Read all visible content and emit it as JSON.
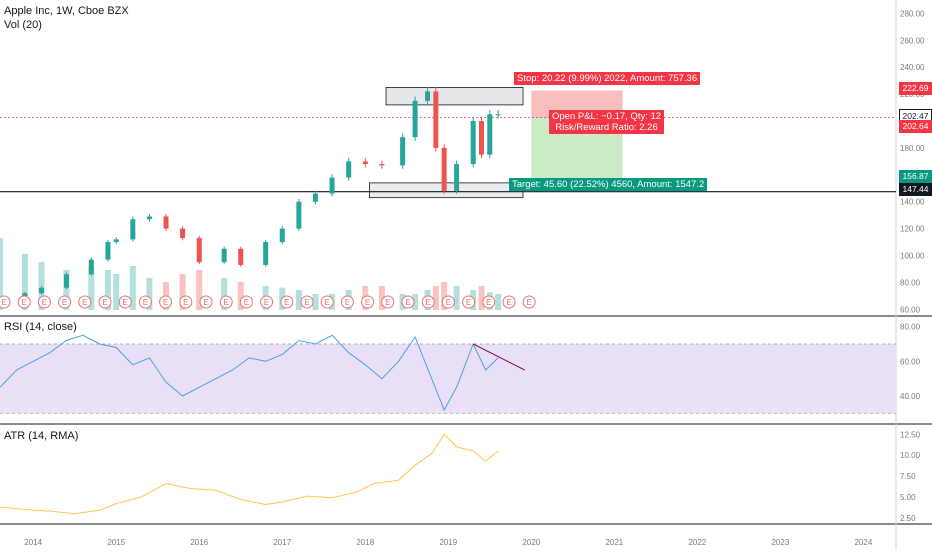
{
  "header": {
    "symbol": "Apple Inc, 1W, Cboe BZX",
    "volume_indicator": "Vol (20)",
    "rsi_indicator": "RSI (14, close)",
    "atr_indicator": "ATR (14, RMA)"
  },
  "colors": {
    "up": "#26a69a",
    "down": "#ef5350",
    "stop_zone": "#f7a9a8",
    "target_zone": "#b9e4b4",
    "rsi_line": "#4aa3df",
    "rsi_band": "#e9dff7",
    "atr_line": "#f9c74f",
    "earnings": "#e57373"
  },
  "price_axis": {
    "ticks": [
      "280.00",
      "260.00",
      "240.00",
      "220.00",
      "200.00",
      "180.00",
      "160.00",
      "140.00",
      "120.00",
      "100.00",
      "80.00",
      "60.00"
    ],
    "labels": [
      {
        "text": "222.69",
        "color": "#f23645"
      },
      {
        "text": "202.47",
        "color": "#ffffff",
        "text_color": "#131722"
      },
      {
        "text": "202.64",
        "color": "#f23645"
      },
      {
        "text": "156.87",
        "color": "#089981"
      },
      {
        "text": "147.44",
        "color": "#131722"
      }
    ]
  },
  "rsi_axis": {
    "ticks": [
      "80.00",
      "60.00",
      "40.00"
    ]
  },
  "atr_axis": {
    "ticks": [
      "12.50",
      "10.00",
      "7.50",
      "5.00",
      "2.50"
    ]
  },
  "time_axis": {
    "ticks": [
      "2014",
      "2015",
      "2016",
      "2017",
      "2018",
      "2019",
      "2020",
      "2021",
      "2022",
      "2023",
      "2024"
    ]
  },
  "trade": {
    "stop": "Stop: 20.22 (9.99%) 2022, Amount: 757.36",
    "pnl": "Open P&L: −0.17, Qty: 12",
    "risk_reward": "Risk/Reward Ratio: 2.26",
    "target": "Target: 45.60 (22.52%) 4560, Amount: 1547.2"
  },
  "earnings_marker": "E",
  "chart_data": [
    {
      "type": "candlestick",
      "title": "Apple Inc, 1W, Cboe BZX",
      "x_range": [
        2013.6,
        2024.2
      ],
      "ylim": [
        55,
        290
      ],
      "x": [
        2013.6,
        2013.9,
        2014.1,
        2014.4,
        2014.7,
        2014.9,
        2015.0,
        2015.2,
        2015.4,
        2015.6,
        2015.8,
        2016.0,
        2016.3,
        2016.5,
        2016.8,
        2017.0,
        2017.2,
        2017.4,
        2017.6,
        2017.8,
        2018.0,
        2018.2,
        2018.45,
        2018.6,
        2018.75,
        2018.85,
        2018.95,
        2019.1,
        2019.3,
        2019.4,
        2019.5,
        2019.6
      ],
      "close": [
        66,
        72,
        76,
        86,
        97,
        110,
        112,
        127,
        129,
        120,
        113,
        95,
        105,
        93,
        110,
        120,
        140,
        146,
        158,
        170,
        168,
        167,
        188,
        215,
        222,
        180,
        148,
        168,
        200,
        175,
        205,
        205
      ]
    },
    {
      "type": "bar",
      "title": "Vol (20)",
      "x": [
        2013.6,
        2013.9,
        2014.1,
        2014.4,
        2014.7,
        2014.9,
        2015.0,
        2015.2,
        2015.4,
        2015.6,
        2015.8,
        2016.0,
        2016.3,
        2016.5,
        2016.8,
        2017.0,
        2017.2,
        2017.4,
        2017.6,
        2017.8,
        2018.0,
        2018.2,
        2018.45,
        2018.6,
        2018.75,
        2018.85,
        2018.95,
        2019.1,
        2019.3,
        2019.4,
        2019.5,
        2019.6
      ],
      "values": [
        0.9,
        0.7,
        0.6,
        0.5,
        0.55,
        0.5,
        0.45,
        0.55,
        0.4,
        0.35,
        0.45,
        0.5,
        0.4,
        0.35,
        0.3,
        0.28,
        0.25,
        0.2,
        0.2,
        0.25,
        0.3,
        0.3,
        0.2,
        0.2,
        0.25,
        0.3,
        0.35,
        0.3,
        0.25,
        0.3,
        0.22,
        0.2
      ]
    },
    {
      "type": "line",
      "title": "RSI (14, close)",
      "ylim": [
        25,
        85
      ],
      "band": [
        30,
        70
      ],
      "x": [
        2013.6,
        2013.8,
        2014.0,
        2014.2,
        2014.4,
        2014.6,
        2014.8,
        2015.0,
        2015.2,
        2015.4,
        2015.6,
        2015.8,
        2016.0,
        2016.2,
        2016.4,
        2016.6,
        2016.8,
        2017.0,
        2017.2,
        2017.4,
        2017.6,
        2017.8,
        2018.0,
        2018.2,
        2018.4,
        2018.6,
        2018.8,
        2018.95,
        2019.1,
        2019.3,
        2019.45,
        2019.6
      ],
      "values": [
        45,
        55,
        60,
        65,
        72,
        75,
        70,
        68,
        58,
        62,
        48,
        40,
        45,
        50,
        55,
        62,
        60,
        64,
        72,
        70,
        75,
        65,
        58,
        50,
        60,
        74,
        50,
        32,
        45,
        70,
        55,
        62
      ]
    },
    {
      "type": "line",
      "title": "ATR (14, RMA)",
      "ylim": [
        2.0,
        13.5
      ],
      "x": [
        2013.6,
        2013.9,
        2014.2,
        2014.5,
        2014.8,
        2015.0,
        2015.3,
        2015.6,
        2015.9,
        2016.2,
        2016.5,
        2016.8,
        2017.0,
        2017.3,
        2017.6,
        2017.9,
        2018.1,
        2018.4,
        2018.6,
        2018.8,
        2018.95,
        2019.1,
        2019.3,
        2019.45,
        2019.6
      ],
      "values": [
        3.8,
        3.5,
        3.3,
        3.0,
        3.4,
        4.2,
        5.0,
        6.6,
        6.0,
        5.8,
        4.7,
        4.1,
        4.4,
        5.1,
        4.9,
        5.6,
        6.6,
        7.0,
        8.8,
        10.2,
        12.5,
        11.0,
        10.5,
        9.3,
        10.5
      ]
    }
  ]
}
